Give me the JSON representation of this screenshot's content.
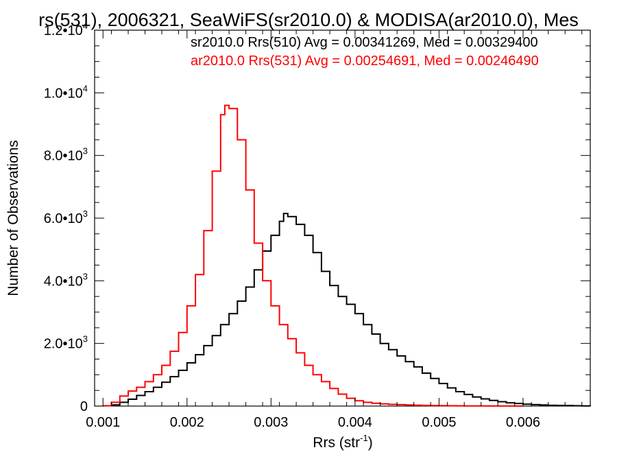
{
  "chart_data": {
    "type": "line",
    "title": "rs(531), 2006321, SeaWiFS(sr2010.0) & MODISA(ar2010.0), Mes",
    "xlabel": "Rrs (str",
    "xlabel_sup": "-1",
    "xlabel_close": ")",
    "ylabel": "Number of Observations",
    "xlim": [
      0.0009,
      0.0068
    ],
    "ylim": [
      0,
      12000
    ],
    "xticks": [
      0.001,
      0.002,
      0.003,
      0.004,
      0.005,
      0.006
    ],
    "xtick_labels": [
      "0.001",
      "0.002",
      "0.003",
      "0.004",
      "0.005",
      "0.006"
    ],
    "yticks": [
      0,
      2000,
      4000,
      6000,
      8000,
      10000,
      12000
    ],
    "ytick_labels": [
      {
        "base": "0",
        "exp": ""
      },
      {
        "base": "2.0•10",
        "exp": "3"
      },
      {
        "base": "4.0•10",
        "exp": "3"
      },
      {
        "base": "6.0•10",
        "exp": "3"
      },
      {
        "base": "8.0•10",
        "exp": "3"
      },
      {
        "base": "1.0•10",
        "exp": "4"
      },
      {
        "base": "1.2•10",
        "exp": "4"
      }
    ],
    "legend_placement": "top-right",
    "grid": false,
    "series": [
      {
        "name": "sr2010.0 Rrs(510) Avg = 0.00341269, Med = 0.00329400",
        "color": "#000000",
        "points": [
          [
            0.001,
            10
          ],
          [
            0.0011,
            40
          ],
          [
            0.0012,
            120
          ],
          [
            0.0013,
            220
          ],
          [
            0.0014,
            340
          ],
          [
            0.0015,
            460
          ],
          [
            0.0016,
            600
          ],
          [
            0.0017,
            760
          ],
          [
            0.0018,
            940
          ],
          [
            0.0019,
            1140
          ],
          [
            0.002,
            1380
          ],
          [
            0.0021,
            1640
          ],
          [
            0.0022,
            1930
          ],
          [
            0.0023,
            2250
          ],
          [
            0.0024,
            2600
          ],
          [
            0.0025,
            2950
          ],
          [
            0.0026,
            3350
          ],
          [
            0.0027,
            3800
          ],
          [
            0.0028,
            4350
          ],
          [
            0.0029,
            4950
          ],
          [
            0.003,
            5450
          ],
          [
            0.0031,
            5900
          ],
          [
            0.00315,
            6150
          ],
          [
            0.0032,
            6050
          ],
          [
            0.0033,
            5800
          ],
          [
            0.0034,
            5450
          ],
          [
            0.0035,
            4900
          ],
          [
            0.0036,
            4300
          ],
          [
            0.0037,
            3850
          ],
          [
            0.0038,
            3500
          ],
          [
            0.0039,
            3250
          ],
          [
            0.004,
            2950
          ],
          [
            0.0041,
            2600
          ],
          [
            0.0042,
            2300
          ],
          [
            0.0043,
            2000
          ],
          [
            0.0044,
            1800
          ],
          [
            0.0045,
            1600
          ],
          [
            0.0046,
            1420
          ],
          [
            0.0047,
            1250
          ],
          [
            0.0048,
            1050
          ],
          [
            0.0049,
            880
          ],
          [
            0.005,
            720
          ],
          [
            0.0051,
            580
          ],
          [
            0.0052,
            460
          ],
          [
            0.0053,
            370
          ],
          [
            0.0054,
            290
          ],
          [
            0.0055,
            230
          ],
          [
            0.0056,
            180
          ],
          [
            0.0057,
            140
          ],
          [
            0.0058,
            105
          ],
          [
            0.0059,
            80
          ],
          [
            0.006,
            60
          ],
          [
            0.0061,
            45
          ],
          [
            0.0062,
            35
          ],
          [
            0.0063,
            25
          ],
          [
            0.0064,
            20
          ],
          [
            0.0065,
            15
          ],
          [
            0.0066,
            10
          ],
          [
            0.0067,
            5
          ],
          [
            0.0068,
            3
          ]
        ]
      },
      {
        "name": "ar2010.0 Rrs(531) Avg = 0.00254691, Med = 0.00246490",
        "color": "#ff0000",
        "points": [
          [
            0.001,
            10
          ],
          [
            0.0011,
            120
          ],
          [
            0.0012,
            320
          ],
          [
            0.0013,
            480
          ],
          [
            0.0014,
            600
          ],
          [
            0.0015,
            780
          ],
          [
            0.0016,
            1000
          ],
          [
            0.0017,
            1300
          ],
          [
            0.0018,
            1750
          ],
          [
            0.0019,
            2350
          ],
          [
            0.002,
            3200
          ],
          [
            0.0021,
            4200
          ],
          [
            0.0022,
            5600
          ],
          [
            0.0023,
            7500
          ],
          [
            0.0024,
            9300
          ],
          [
            0.00245,
            9600
          ],
          [
            0.0025,
            9500
          ],
          [
            0.0026,
            8500
          ],
          [
            0.0027,
            6900
          ],
          [
            0.0028,
            5200
          ],
          [
            0.0029,
            4000
          ],
          [
            0.003,
            3200
          ],
          [
            0.0031,
            2600
          ],
          [
            0.0032,
            2150
          ],
          [
            0.0033,
            1700
          ],
          [
            0.0034,
            1300
          ],
          [
            0.0035,
            1000
          ],
          [
            0.0036,
            780
          ],
          [
            0.0037,
            560
          ],
          [
            0.0038,
            380
          ],
          [
            0.0039,
            250
          ],
          [
            0.004,
            170
          ],
          [
            0.0041,
            120
          ],
          [
            0.0042,
            90
          ],
          [
            0.0043,
            70
          ],
          [
            0.0044,
            55
          ],
          [
            0.0045,
            45
          ],
          [
            0.0046,
            35
          ],
          [
            0.0047,
            28
          ],
          [
            0.0048,
            22
          ],
          [
            0.0049,
            17
          ],
          [
            0.005,
            13
          ],
          [
            0.0051,
            10
          ],
          [
            0.0052,
            8
          ],
          [
            0.0053,
            6
          ],
          [
            0.0054,
            5
          ],
          [
            0.0055,
            4
          ],
          [
            0.0056,
            3
          ],
          [
            0.0057,
            2
          ],
          [
            0.0058,
            2
          ],
          [
            0.0059,
            1
          ],
          [
            0.006,
            1
          ]
        ]
      }
    ]
  }
}
